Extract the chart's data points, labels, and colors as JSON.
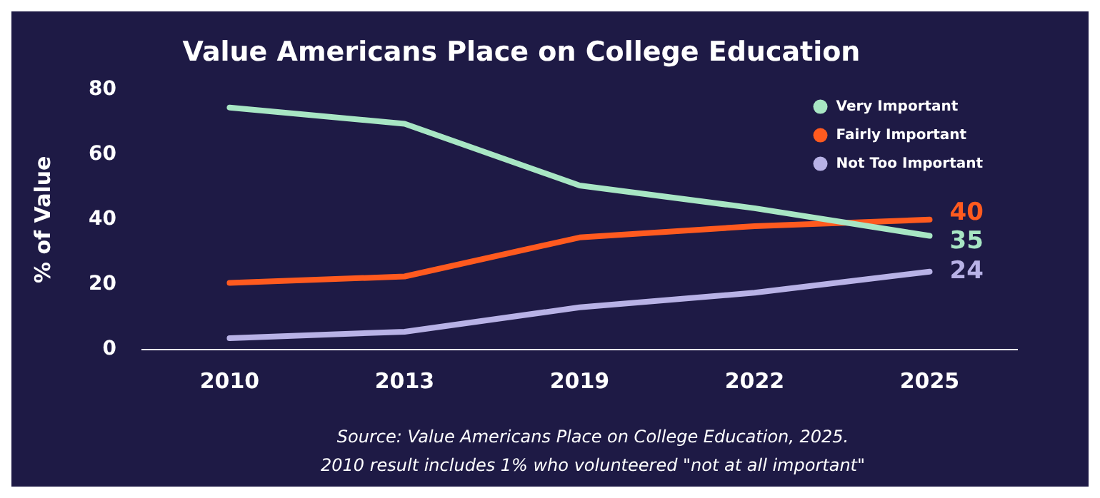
{
  "chart_data": {
    "type": "line",
    "title": "Value Americans Place on College Education",
    "ylabel": "% of Value",
    "categories": [
      "2010",
      "2013",
      "2019",
      "2022",
      "2025"
    ],
    "series": [
      {
        "name": "Very Important",
        "color": "#a8e6c4",
        "values": [
          74.5,
          69.5,
          50.5,
          43.5,
          35
        ],
        "value_labels": [
          null,
          null,
          null,
          null,
          "35"
        ]
      },
      {
        "name": "Fairly Important",
        "color": "#ff5a1f",
        "values": [
          20.5,
          22.5,
          34.5,
          38,
          40
        ],
        "value_labels": [
          null,
          null,
          null,
          null,
          "40"
        ]
      },
      {
        "name": "Not Too Important",
        "color": "#b8b2e6",
        "values": [
          3.5,
          5.5,
          13,
          17.5,
          24
        ],
        "value_labels": [
          null,
          null,
          null,
          null,
          "24"
        ]
      }
    ],
    "ylim": [
      0,
      80
    ],
    "yticks": [
      0,
      20,
      40,
      60,
      80
    ],
    "grid": false,
    "legend": "top right",
    "marker": "none",
    "line_style": "solid",
    "annotations": [
      "Source: Value Americans Place on College Education, 2025.",
      "2010 result includes 1% who volunteered \"not at all important\""
    ]
  }
}
